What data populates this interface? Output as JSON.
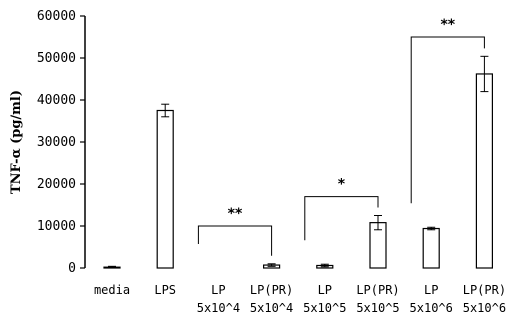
{
  "chart_data": {
    "type": "bar",
    "title": "",
    "xlabel": "",
    "ylabel": "TNF-α (pg/ml)",
    "ylim": [
      0,
      60000
    ],
    "yticks": [
      0,
      10000,
      20000,
      30000,
      40000,
      50000,
      60000
    ],
    "ytick_labels": [
      "0",
      "10000",
      "20000",
      "30000",
      "40000",
      "50000",
      "60000"
    ],
    "grid": false,
    "legend": "none",
    "bar_color": "#ffffff",
    "line_color": "#000000",
    "categories": [
      {
        "line1": "media",
        "line2": ""
      },
      {
        "line1": "LPS",
        "line2": ""
      },
      {
        "line1": "LP",
        "line2": "5x10^4"
      },
      {
        "line1": "LP(PR)",
        "line2": "5x10^4"
      },
      {
        "line1": "LP",
        "line2": "5x10^5"
      },
      {
        "line1": "LP(PR)",
        "line2": "5x10^5"
      },
      {
        "line1": "LP",
        "line2": "5x10^6"
      },
      {
        "line1": "LP(PR)",
        "line2": "5x10^6"
      }
    ],
    "values": [
      200,
      37500,
      0,
      700,
      600,
      10800,
      9400,
      46200
    ],
    "errors": [
      200,
      1500,
      0,
      300,
      300,
      1700,
      300,
      4200
    ],
    "significance": [
      {
        "label": "**",
        "from": 2,
        "to": 3,
        "y": 10000
      },
      {
        "label": "*",
        "from": 4,
        "to": 5,
        "y": 17000
      },
      {
        "label": "**",
        "from": 6,
        "to": 7,
        "y": 55000
      }
    ]
  }
}
